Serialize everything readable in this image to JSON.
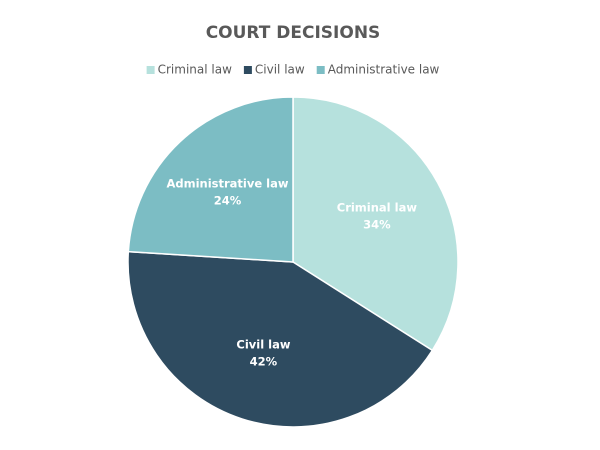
{
  "chart_data": {
    "type": "pie",
    "title": "COURT DECISIONS",
    "categories": [
      "Criminal law",
      "Civil law",
      "Administrative law"
    ],
    "values": [
      34,
      42,
      24
    ],
    "value_labels": [
      "34%",
      "42%",
      "24%"
    ],
    "colors": [
      "#b6e1dd",
      "#2e4b60",
      "#7cbdc4"
    ],
    "legend": "top"
  }
}
